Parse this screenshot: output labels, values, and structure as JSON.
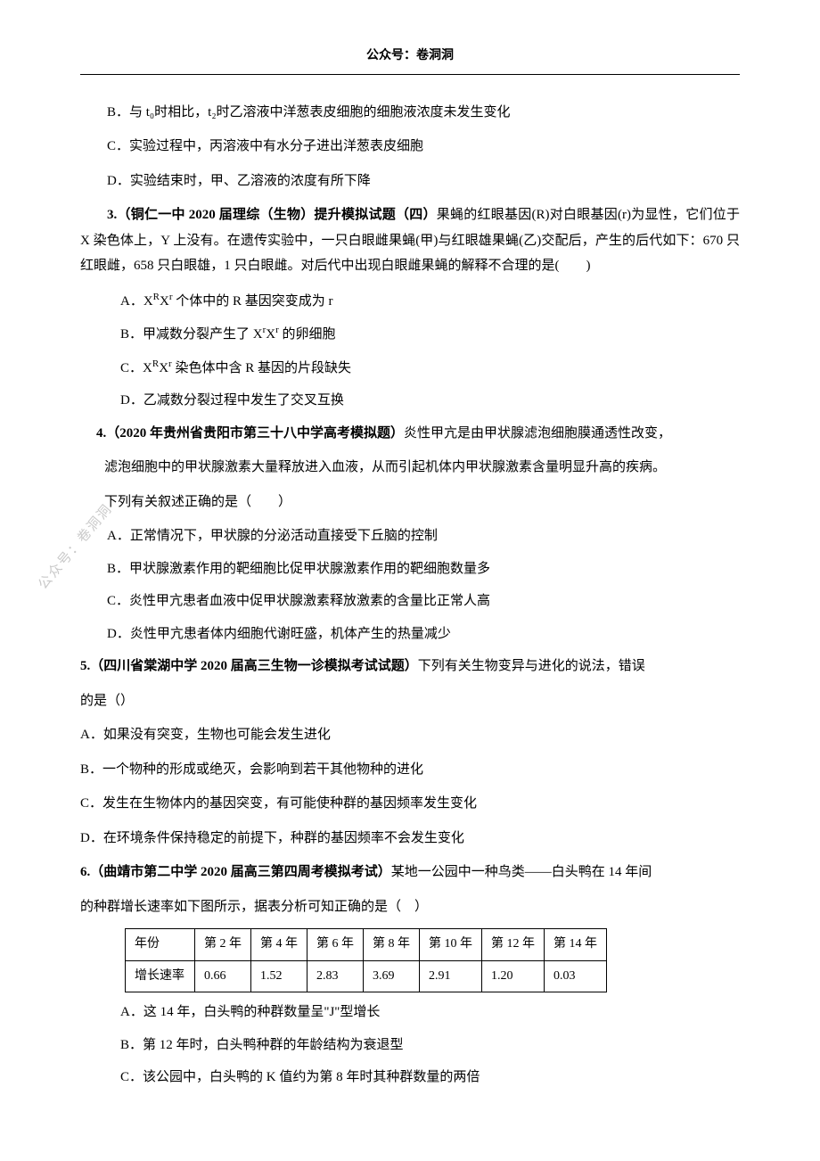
{
  "header": "公众号：卷洞洞",
  "watermark": "公众号：卷洞洞",
  "q2": {
    "optB": "B．与 t₀时相比，t₂时乙溶液中洋葱表皮细胞的细胞液浓度未发生变化",
    "optC": "C．实验过程中，丙溶液中有水分子进出洋葱表皮细胞",
    "optD": "D．实验结束时，甲、乙溶液的浓度有所下降"
  },
  "q3": {
    "stem_bold": "3.（铜仁一中 2020 届理综（生物）提升模拟试题（四）",
    "stem_rest": "果蝇的红眼基因(R)对白眼基因(r)为显性，它们位于 X 染色体上，Y 上没有。在遗传实验中，一只白眼雌果蝇(甲)与红眼雄果蝇(乙)交配后，产生的后代如下：670 只红眼雌，658 只白眼雄，1 只白眼雌。对后代中出现白眼雌果蝇的解释不合理的是(　　)",
    "optA_pre": "A．X",
    "optA_sup1": "R",
    "optA_mid1": "X",
    "optA_sup2": "r",
    "optA_post": " 个体中的 R 基因突变成为 r",
    "optB_pre": "B．甲减数分裂产生了 X",
    "optB_sup1": "r",
    "optB_mid": "X",
    "optB_sup2": "r",
    "optB_post": " 的卵细胞",
    "optC_pre": "C．X",
    "optC_sup1": "R",
    "optC_mid": "X",
    "optC_sup2": "r",
    "optC_post": " 染色体中含 R 基因的片段缺失",
    "optD": "D．乙减数分裂过程中发生了交叉互换"
  },
  "q4": {
    "stem_bold": "4.（2020 年贵州省贵阳市第三十八中学高考模拟题）",
    "stem_rest": "炎性甲亢是由甲状腺滤泡细胞膜通透性改变，",
    "stem_line2": "滤泡细胞中的甲状腺激素大量释放进入血液，从而引起机体内甲状腺激素含量明显升高的疾病。",
    "stem_line3": "下列有关叙述正确的是（　　）",
    "optA": "A．正常情况下，甲状腺的分泌活动直接受下丘脑的控制",
    "optB": "B．甲状腺激素作用的靶细胞比促甲状腺激素作用的靶细胞数量多",
    "optC": "C．炎性甲亢患者血液中促甲状腺激素释放激素的含量比正常人高",
    "optD": "D．炎性甲亢患者体内细胞代谢旺盛，机体产生的热量减少"
  },
  "q5": {
    "stem_bold": "5.（四川省棠湖中学 2020 届高三生物一诊模拟考试试题）",
    "stem_rest": "下列有关生物变异与进化的说法，错误",
    "stem_line2": "的是（）",
    "optA": "A．如果没有突变，生物也可能会发生进化",
    "optB": "B．一个物种的形成或绝灭，会影响到若干其他物种的进化",
    "optC": "C．发生在生物体内的基因突变，有可能使种群的基因频率发生变化",
    "optD": "D．在环境条件保持稳定的前提下，种群的基因频率不会发生变化"
  },
  "q6": {
    "stem_bold": "6.（曲靖市第二中学 2020 届高三第四周考模拟考试）",
    "stem_rest": "某地一公园中一种鸟类——白头鸭在 14 年间",
    "stem_line2": "的种群增长速率如下图所示，据表分析可知正确的是（　）",
    "table": {
      "row1": [
        "年份",
        "第 2 年",
        "第 4 年",
        "第 6 年",
        "第 8 年",
        "第 10 年",
        "第 12 年",
        "第 14 年"
      ],
      "row2": [
        "增长速率",
        "0.66",
        "1.52",
        "2.83",
        "3.69",
        "2.91",
        "1.20",
        "0.03"
      ]
    },
    "optA": "A．这 14 年，白头鸭的种群数量呈\"J\"型增长",
    "optB": "B．第 12 年时，白头鸭种群的年龄结构为衰退型",
    "optC": "C．该公园中，白头鸭的 K 值约为第 8 年时其种群数量的两倍"
  }
}
